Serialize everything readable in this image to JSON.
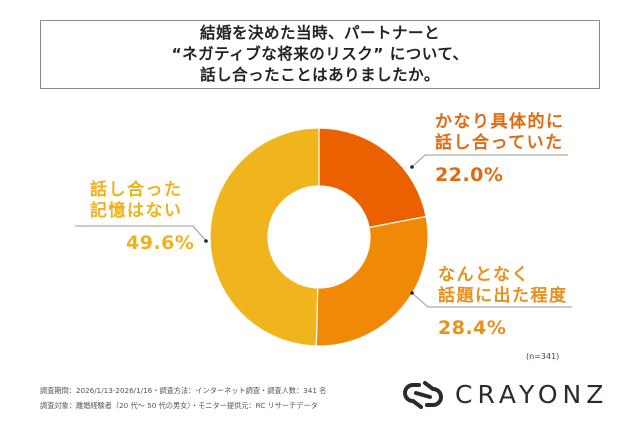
{
  "title": {
    "lines": [
      "結婚を決めた当時、パートナーと",
      "“ネガティブな将来のリスク” について、",
      "話し合ったことはありましたか。"
    ]
  },
  "labels": {
    "concrete": {
      "line1": "かなり具体的に",
      "line2": "話し合っていた",
      "value": "22.0%"
    },
    "somewhat": {
      "line1": "なんとなく",
      "line2": "話題に出た程度",
      "value": "28.4%"
    },
    "none": {
      "line1": "話し合った",
      "line2": "記憶はない",
      "value": "49.6%"
    }
  },
  "sample_note": "(n=341)",
  "footer": {
    "line1": "調査期間：2026/1/13-2026/1/16・調査方法：インターネット調査・調査人数：341 名",
    "line2": "調査対象：離婚経験者（20 代〜 50 代の男女）・モニター提供元：RC リサーチデータ"
  },
  "brand": {
    "name": "CRAYONZ",
    "icon": "crayonz-logo-icon"
  },
  "colors": {
    "concrete": "#EB6100",
    "somewhat": "#F08A06",
    "none": "#F0B41C",
    "concrete_text": "#E06A10",
    "somewhat_text": "#E8901C",
    "none_text": "#EDB21E"
  },
  "chart_data": {
    "type": "pie",
    "subtype": "donut",
    "title": "結婚を決めた当時、パートナーと“ネガティブな将来のリスク” について、話し合ったことはありましたか。",
    "categories": [
      "かなり具体的に話し合っていた",
      "なんとなく話題に出た程度",
      "話し合った記憶はない"
    ],
    "values": [
      22.0,
      28.4,
      49.6
    ],
    "unit": "%",
    "start_angle": "12 o'clock, clockwise",
    "sample_size": 341,
    "legend": "inline labels with leader lines"
  }
}
